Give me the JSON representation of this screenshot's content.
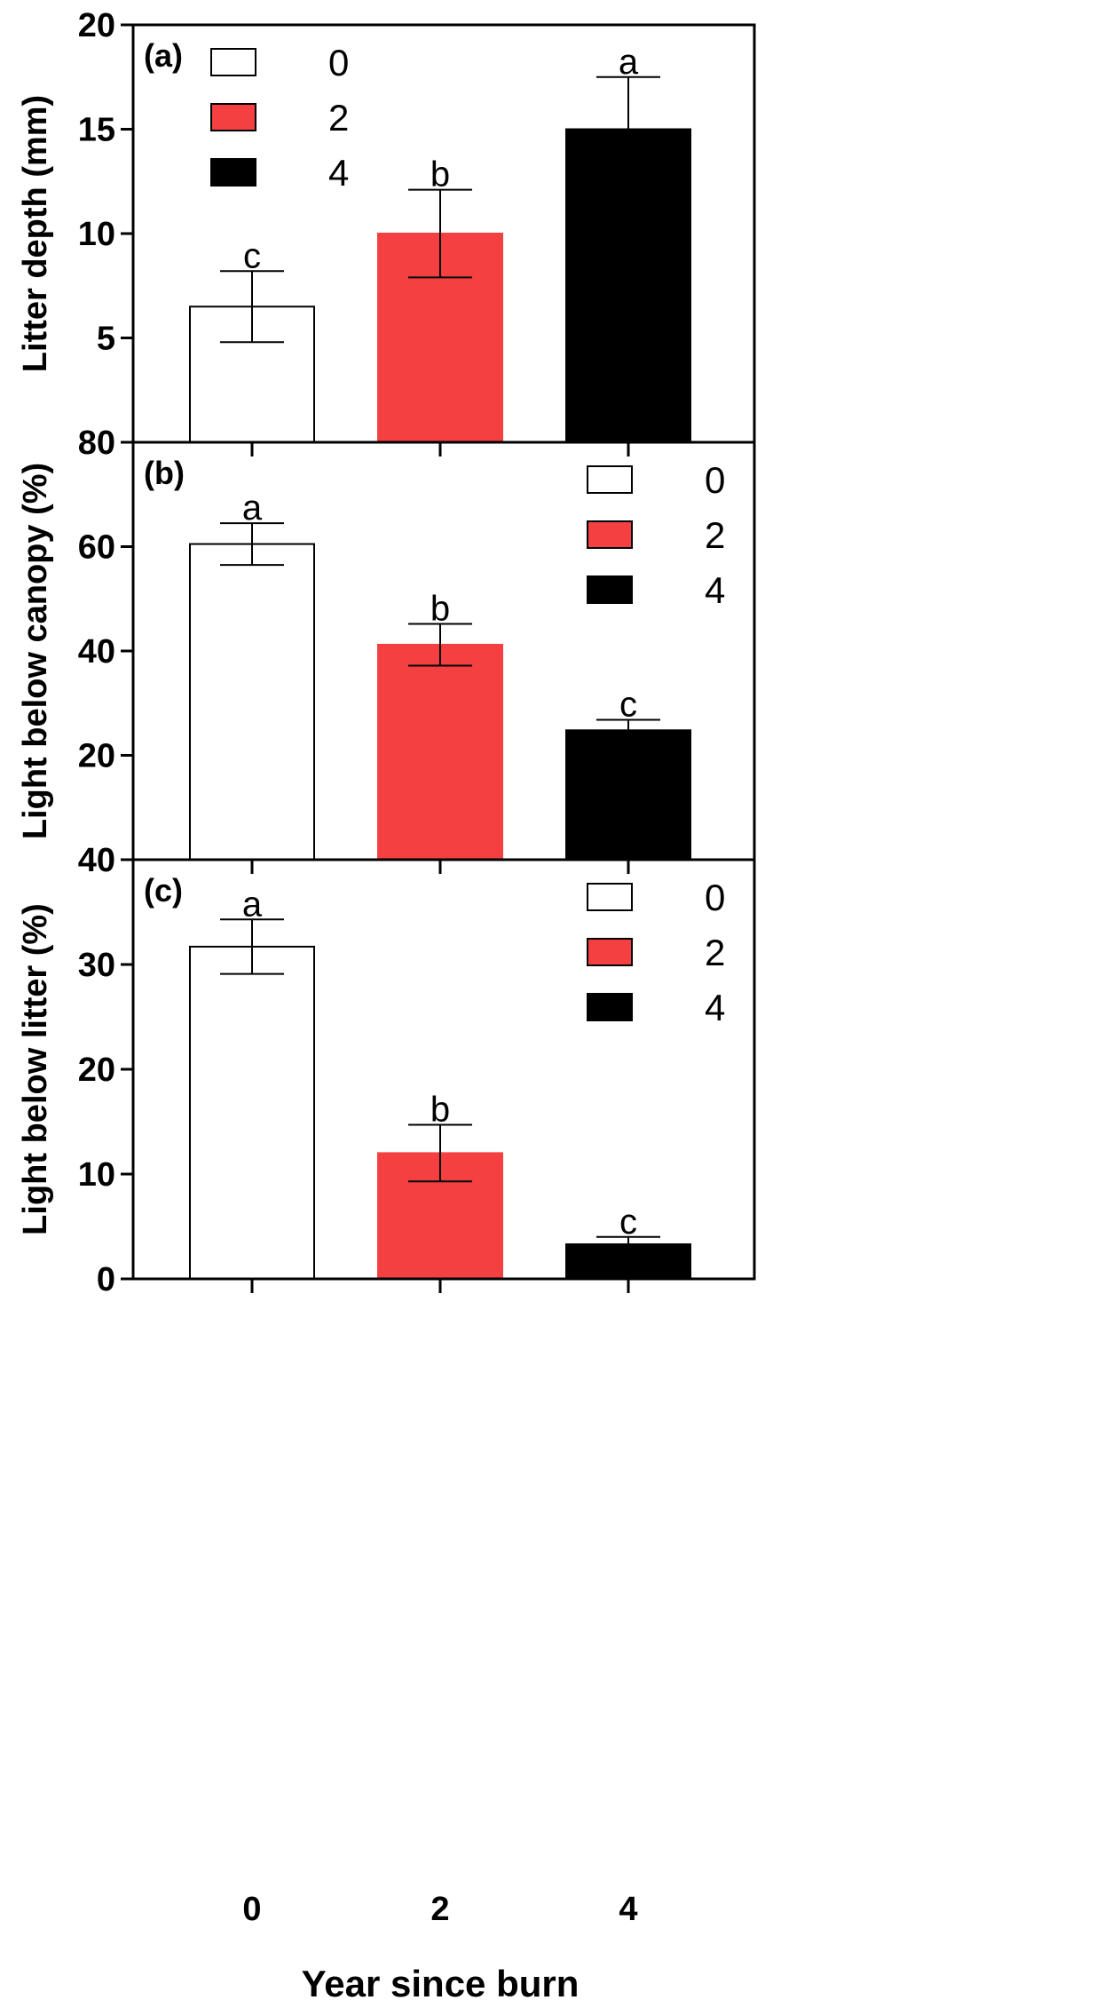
{
  "chart_data": [
    {
      "type": "bar",
      "panel_label": "(a)",
      "categories": [
        "0",
        "2",
        "4"
      ],
      "values": [
        6.5,
        10.0,
        15.0
      ],
      "errors": [
        1.7,
        2.1,
        2.5
      ],
      "letters": [
        "c",
        "b",
        "a"
      ],
      "colors": [
        "#ffffff",
        "#f44040",
        "#000000"
      ],
      "ylabel": "Litter depth (mm)",
      "ylim": [
        0,
        20
      ],
      "yticks": [
        "",
        "5",
        "10",
        "15",
        "20"
      ],
      "legend": [
        "0",
        "2",
        "4"
      ],
      "legend_position": "top-left"
    },
    {
      "type": "bar",
      "panel_label": "(b)",
      "categories": [
        "0",
        "2",
        "4"
      ],
      "values": [
        60.5,
        41.2,
        24.8
      ],
      "errors": [
        4.0,
        4.0,
        2.0
      ],
      "letters": [
        "a",
        "b",
        "c"
      ],
      "colors": [
        "#ffffff",
        "#f44040",
        "#000000"
      ],
      "ylabel": "Light below canopy (%)",
      "ylim": [
        0,
        80
      ],
      "yticks": [
        "",
        "20",
        "40",
        "60",
        "80"
      ],
      "legend": [
        "0",
        "2",
        "4"
      ],
      "legend_position": "top-right"
    },
    {
      "type": "bar",
      "panel_label": "(c)",
      "categories": [
        "0",
        "2",
        "4"
      ],
      "values": [
        31.7,
        12.0,
        3.3
      ],
      "errors": [
        2.6,
        2.7,
        0.7
      ],
      "letters": [
        "a",
        "b",
        "c"
      ],
      "colors": [
        "#ffffff",
        "#f44040",
        "#000000"
      ],
      "ylabel": "Light below litter (%)",
      "ylim": [
        0,
        40
      ],
      "yticks": [
        "0",
        "10",
        "20",
        "30",
        "40"
      ],
      "legend": [
        "0",
        "2",
        "4"
      ],
      "legend_position": "top-right"
    }
  ],
  "xaxis": {
    "label": "Year since burn",
    "ticks": [
      "0",
      "2",
      "4"
    ]
  },
  "colors": {
    "red": "#f44040",
    "black": "#000000",
    "white": "#ffffff"
  }
}
